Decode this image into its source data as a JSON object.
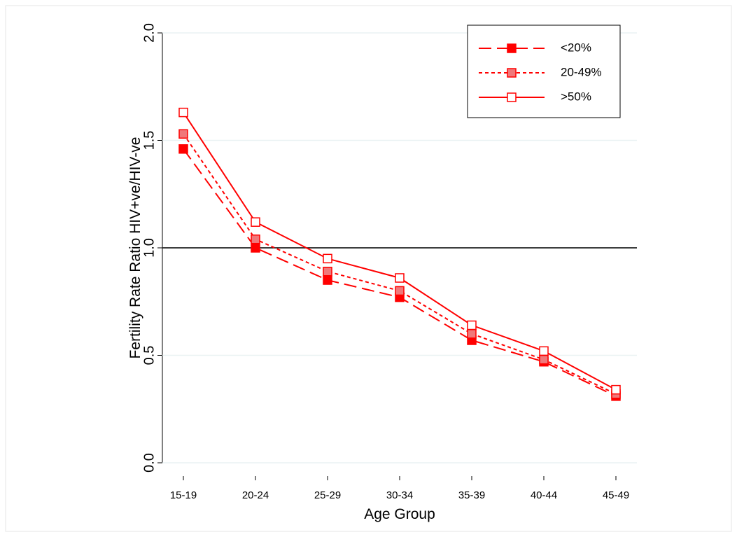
{
  "chart_data": {
    "type": "line",
    "x_label": "Age Group",
    "y_label": "Fertility Rate Ratio HIV+ve/HIV-ve",
    "categories": [
      "15-19",
      "20-24",
      "25-29",
      "30-34",
      "35-39",
      "40-44",
      "45-49"
    ],
    "series": [
      {
        "name": "<20%",
        "color": "#ff0000",
        "marker_fill": "#ff0000",
        "dash": "18,8",
        "values": [
          1.46,
          1.0,
          0.85,
          0.77,
          0.57,
          0.47,
          0.31
        ]
      },
      {
        "name": "20-49%",
        "color": "#ff0000",
        "marker_fill": "#f0787a",
        "dash": "5,4",
        "values": [
          1.53,
          1.04,
          0.89,
          0.8,
          0.6,
          0.48,
          0.32
        ]
      },
      {
        "name": ">50%",
        "color": "#ff0000",
        "marker_fill": "#ffffff",
        "dash": "none",
        "values": [
          1.63,
          1.12,
          0.95,
          0.86,
          0.64,
          0.52,
          0.34
        ]
      }
    ],
    "ylim": [
      0,
      2
    ],
    "yticks": [
      {
        "value": 0,
        "label": "0.0"
      },
      0.5,
      {
        "value": 1,
        "label": "1.0"
      },
      1.5,
      {
        "value": 2,
        "label": "2.0"
      }
    ],
    "reference_line": 1,
    "grid": true,
    "legend": "top-right"
  }
}
